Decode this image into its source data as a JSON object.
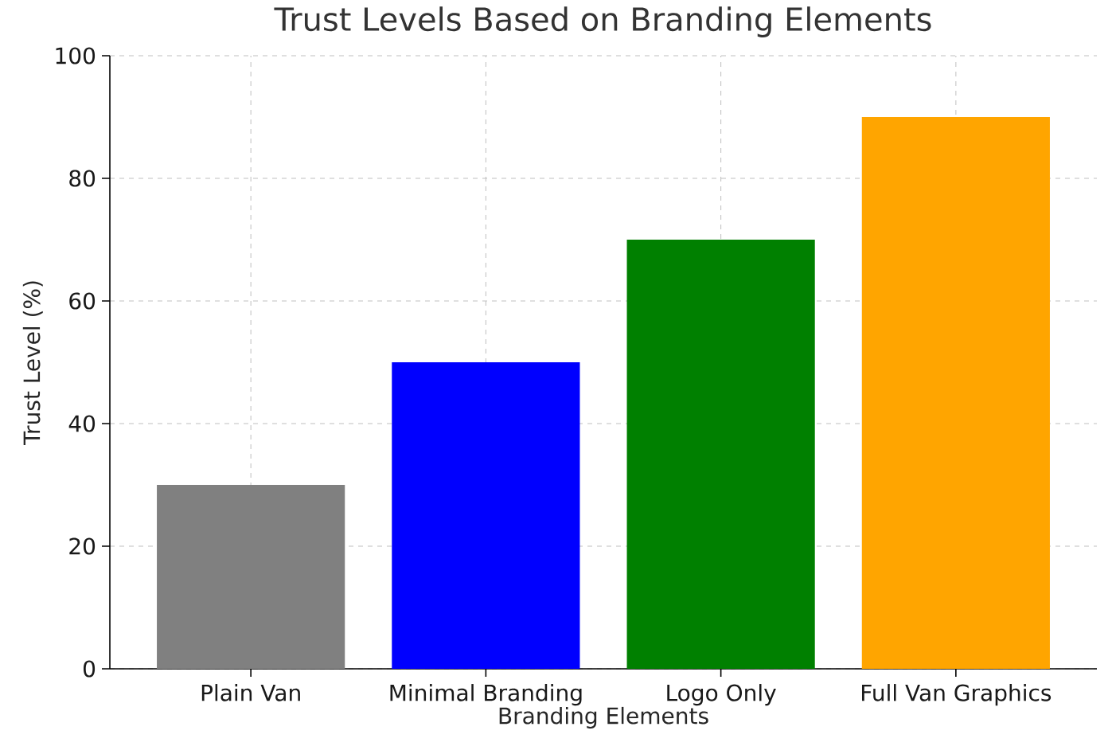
{
  "chart_data": {
    "type": "bar",
    "title": "Trust Levels Based on Branding Elements",
    "xlabel": "Branding Elements",
    "ylabel": "Trust Level (%)",
    "categories": [
      "Plain Van",
      "Minimal Branding",
      "Logo Only",
      "Full Van Graphics"
    ],
    "values": [
      30,
      50,
      70,
      90
    ],
    "colors": [
      "#808080",
      "#0000ff",
      "#008000",
      "#ffa500"
    ],
    "ylim": [
      0,
      100
    ],
    "yticks": [
      0,
      20,
      40,
      60,
      80,
      100
    ],
    "grid": true
  }
}
